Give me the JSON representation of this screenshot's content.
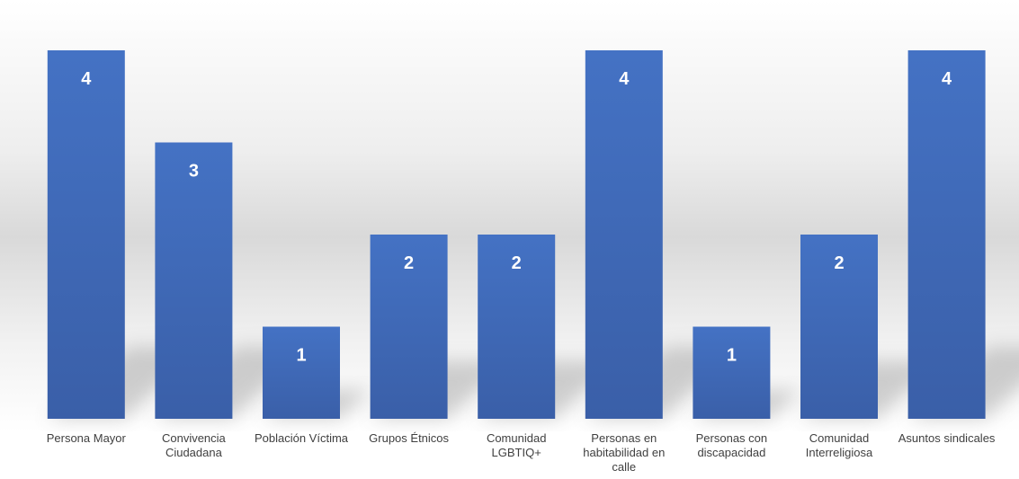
{
  "colors": {
    "bar": "#4472C4",
    "label": "#FFFFFF",
    "text": "#404040"
  },
  "chart_data": {
    "type": "bar",
    "title": "",
    "xlabel": "",
    "ylabel": "",
    "categories": [
      "Persona Mayor",
      "Convivencia Ciudadana",
      "Población Víctima",
      "Grupos Étnicos",
      "Comunidad LGBTIQ+",
      "Personas en habitabilidad en calle",
      "Personas con discapacidad",
      "Comunidad Interreligiosa",
      "Asuntos sindicales"
    ],
    "values": [
      4,
      3,
      1,
      2,
      2,
      4,
      1,
      2,
      4
    ],
    "ylim": [
      0,
      4
    ],
    "grid": false,
    "legend": "none",
    "data_labels": true
  }
}
